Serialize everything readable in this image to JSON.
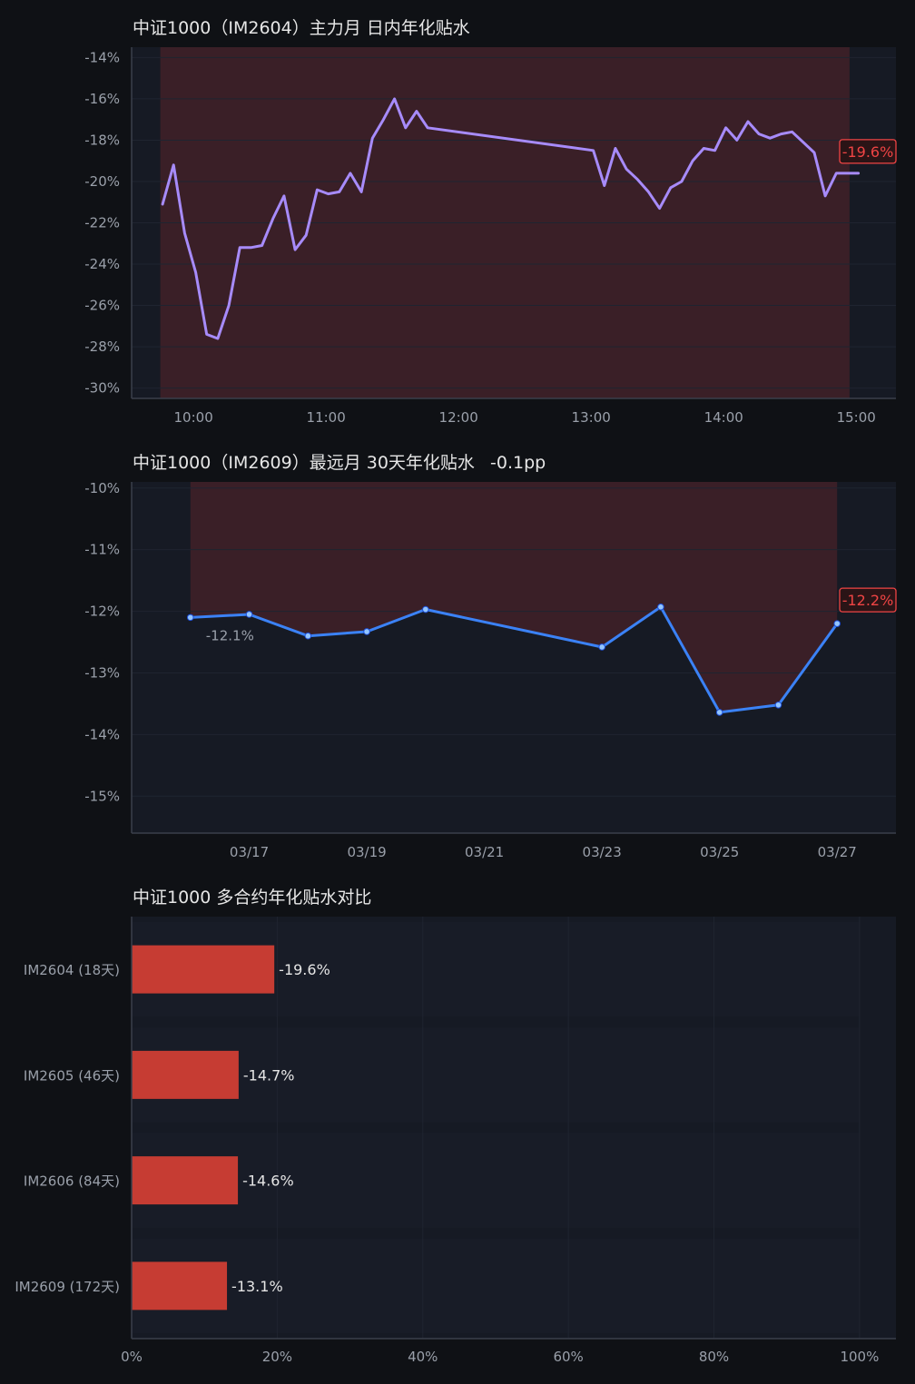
{
  "colors": {
    "background": "#0f1115",
    "plot_bg": "#161a24",
    "grid": "#1f2430",
    "axis": "#3a3f4b",
    "shade": "#3a1f27",
    "line1": "#a78bfa",
    "line2": "#3b82f6",
    "bar": "#c63c33",
    "label_red": "#ef4444"
  },
  "chart_data": [
    {
      "type": "line",
      "title": "中证1000（IM2604）主力月 日内年化贴水",
      "ylim": [
        -30.5,
        -13.5
      ],
      "y_ticks": [
        -14,
        -16,
        -18,
        -20,
        -22,
        -24,
        -26,
        -28,
        -30
      ],
      "y_tick_labels": [
        "-14%",
        "-16%",
        "-18%",
        "-20%",
        "-22%",
        "-24%",
        "-26%",
        "-28%",
        "-30%"
      ],
      "xlim": [
        "9:32",
        "15:18"
      ],
      "x_ticks": [
        "10:00",
        "11:00",
        "12:00",
        "13:00",
        "14:00",
        "15:00"
      ],
      "x_tick_labels": [
        "10:00",
        "11:00",
        "12:00",
        "13:00",
        "14:00",
        "15:00"
      ],
      "shade_range": [
        "9:45",
        "14:57"
      ],
      "end_label": "-19.6%",
      "grid": true,
      "series": [
        {
          "x": [
            "9:46",
            "9:51",
            "9:56",
            "10:01",
            "10:06",
            "10:11",
            "10:16",
            "10:21",
            "10:26",
            "10:31",
            "10:36",
            "10:41",
            "10:46",
            "10:51",
            "10:56",
            "11:01",
            "11:06",
            "11:11",
            "11:16",
            "11:21",
            "11:26",
            "11:31",
            "11:36",
            "11:41",
            "11:46",
            "13:01",
            "13:06",
            "13:11",
            "13:16",
            "13:21",
            "13:26",
            "13:31",
            "13:36",
            "13:41",
            "13:46",
            "13:51",
            "13:56",
            "14:01",
            "14:06",
            "14:11",
            "14:16",
            "14:21",
            "14:26",
            "14:31",
            "14:36",
            "14:41",
            "14:46",
            "14:51",
            "14:56",
            "15:01"
          ],
          "y": [
            -21.1,
            -19.2,
            -22.5,
            -24.4,
            -27.4,
            -27.6,
            -26.0,
            -23.2,
            -23.2,
            -23.1,
            -21.8,
            -20.7,
            -23.3,
            -22.6,
            -20.4,
            -20.6,
            -20.5,
            -19.6,
            -20.5,
            -17.9,
            -17.0,
            -16.0,
            -17.4,
            -16.6,
            -17.4,
            -18.5,
            -20.2,
            -18.4,
            -19.4,
            -19.9,
            -20.5,
            -21.3,
            -20.3,
            -20.0,
            -19.0,
            -18.4,
            -18.5,
            -17.4,
            -18.0,
            -17.1,
            -17.7,
            -17.9,
            -17.7,
            -17.6,
            -18.1,
            -18.6,
            -20.7,
            -19.6,
            -19.6,
            -19.6
          ]
        }
      ]
    },
    {
      "type": "line",
      "title": "中证1000（IM2609）最远月 30天年化贴水",
      "title_suffix": "-0.1pp",
      "ylim": [
        -15.6,
        -9.9
      ],
      "y_ticks": [
        -10,
        -11,
        -12,
        -13,
        -14,
        -15
      ],
      "y_tick_labels": [
        "-10%",
        "-11%",
        "-12%",
        "-13%",
        "-14%",
        "-15%"
      ],
      "xlim": [
        "2025-03-15",
        "2025-03-28"
      ],
      "x_ticks": [
        "2025-03-17",
        "2025-03-19",
        "2025-03-21",
        "2025-03-23",
        "2025-03-25",
        "2025-03-27"
      ],
      "x_tick_labels": [
        "03/17",
        "03/19",
        "03/21",
        "03/23",
        "03/25",
        "03/27"
      ],
      "shade_range": [
        "2025-03-16",
        "2025-03-27"
      ],
      "start_label": "-12.1%",
      "end_label": "-12.2%",
      "grid": true,
      "series": [
        {
          "x": [
            "2025-03-16",
            "2025-03-17",
            "2025-03-18",
            "2025-03-19",
            "2025-03-20",
            "2025-03-23",
            "2025-03-24",
            "2025-03-25",
            "2025-03-26",
            "2025-03-27"
          ],
          "y": [
            -12.1,
            -12.05,
            -12.4,
            -12.33,
            -11.97,
            -12.58,
            -11.93,
            -13.64,
            -13.52,
            -12.2
          ]
        }
      ]
    },
    {
      "type": "bar",
      "orientation": "horizontal",
      "title": "中证1000 多合约年化贴水对比",
      "categories": [
        "IM2604 (18天)",
        "IM2605 (46天)",
        "IM2606 (84天)",
        "IM2609 (172天)"
      ],
      "values": [
        19.6,
        14.7,
        14.6,
        13.1
      ],
      "value_labels": [
        "-19.6%",
        "-14.7%",
        "-14.6%",
        "-13.1%"
      ],
      "xlim": [
        0,
        105
      ],
      "x_ticks": [
        0,
        20,
        40,
        60,
        80,
        100
      ],
      "x_tick_labels": [
        "0%",
        "20%",
        "40%",
        "60%",
        "80%",
        "100%"
      ],
      "grid": true
    }
  ]
}
